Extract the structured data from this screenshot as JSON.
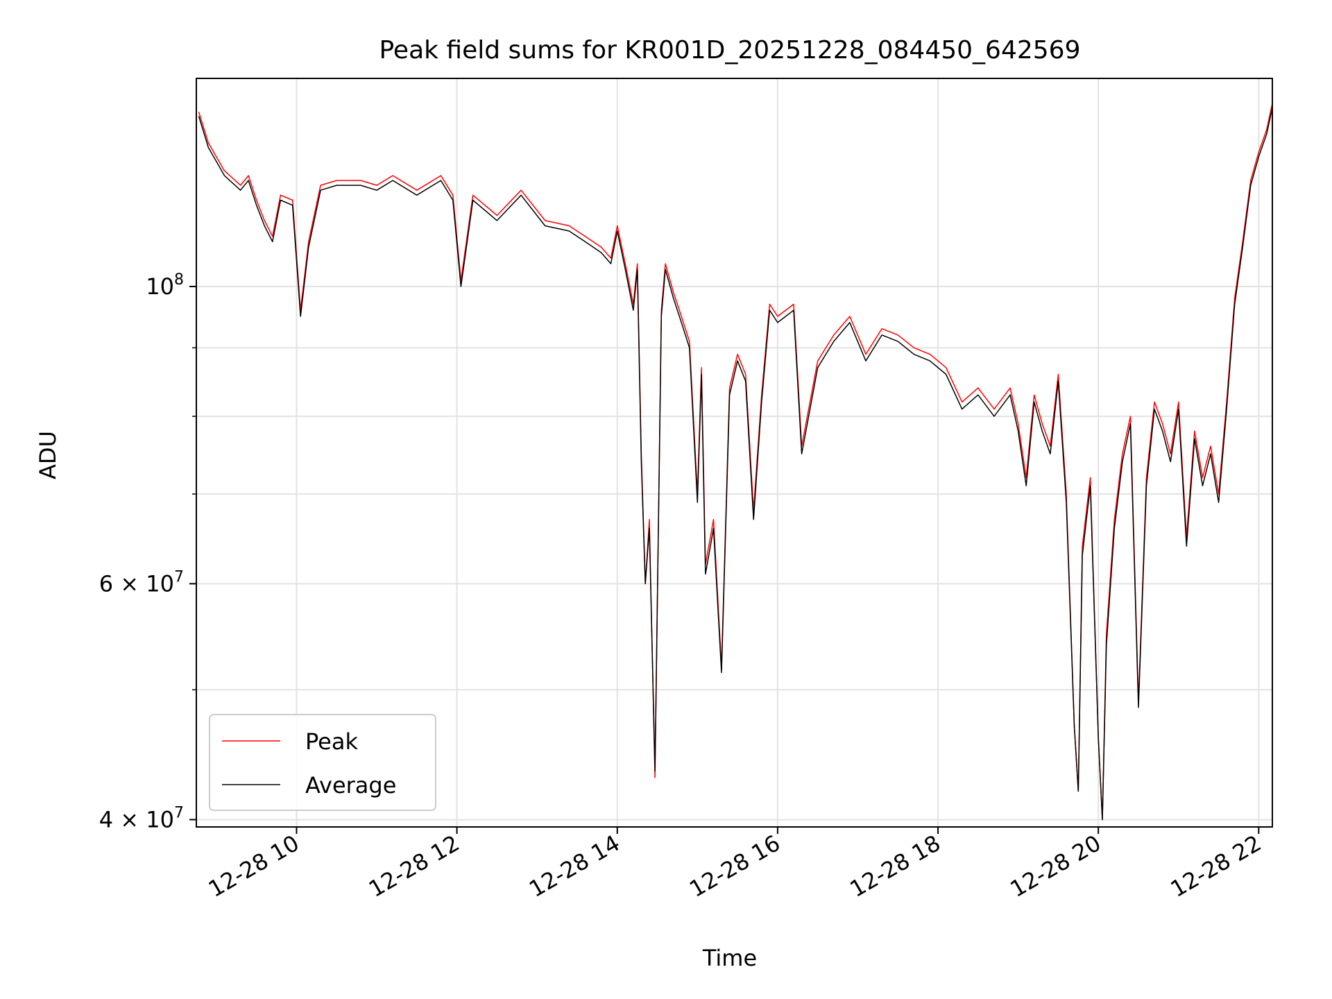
{
  "chart_data": {
    "type": "line",
    "title": "Peak field sums for KR001D_20251228_084450_642569",
    "xlabel": "Time",
    "ylabel": "ADU",
    "yscale": "log",
    "xlim_hours": [
      8.75,
      22.17
    ],
    "ylim": [
      39500000,
      143000000
    ],
    "grid": true,
    "legend_position": "lower-left",
    "x_ticks": [
      {
        "hour": 10,
        "label": "12-28 10"
      },
      {
        "hour": 12,
        "label": "12-28 12"
      },
      {
        "hour": 14,
        "label": "12-28 14"
      },
      {
        "hour": 16,
        "label": "12-28 16"
      },
      {
        "hour": 18,
        "label": "12-28 18"
      },
      {
        "hour": 20,
        "label": "12-28 20"
      },
      {
        "hour": 22,
        "label": "12-28 22"
      }
    ],
    "y_ticks": [
      {
        "value": 100000000,
        "base": "10",
        "exp": "8"
      },
      {
        "value": 60000000,
        "base": "6 × 10",
        "exp": "7"
      },
      {
        "value": 40000000,
        "base": "4 × 10",
        "exp": "7"
      }
    ],
    "y_minor_grid": [
      50000000,
      70000000,
      80000000,
      90000000
    ],
    "series": [
      {
        "name": "Peak",
        "color": "#ff0000",
        "points": [
          [
            8.78,
            135000000
          ],
          [
            8.9,
            128000000
          ],
          [
            9.1,
            122000000
          ],
          [
            9.3,
            119000000
          ],
          [
            9.4,
            121000000
          ],
          [
            9.5,
            116000000
          ],
          [
            9.6,
            112000000
          ],
          [
            9.7,
            109000000
          ],
          [
            9.8,
            117000000
          ],
          [
            9.95,
            116000000
          ],
          [
            10.05,
            96000000
          ],
          [
            10.15,
            108000000
          ],
          [
            10.3,
            119000000
          ],
          [
            10.5,
            120000000
          ],
          [
            10.8,
            120000000
          ],
          [
            11.0,
            119000000
          ],
          [
            11.2,
            121000000
          ],
          [
            11.5,
            118000000
          ],
          [
            11.8,
            121000000
          ],
          [
            11.95,
            117000000
          ],
          [
            12.05,
            101000000
          ],
          [
            12.2,
            117000000
          ],
          [
            12.5,
            113000000
          ],
          [
            12.8,
            118000000
          ],
          [
            13.1,
            112000000
          ],
          [
            13.4,
            111000000
          ],
          [
            13.6,
            109000000
          ],
          [
            13.8,
            107000000
          ],
          [
            13.92,
            105000000
          ],
          [
            14.0,
            111000000
          ],
          [
            14.1,
            104000000
          ],
          [
            14.2,
            97000000
          ],
          [
            14.25,
            104000000
          ],
          [
            14.3,
            75000000
          ],
          [
            14.35,
            60000000
          ],
          [
            14.4,
            67000000
          ],
          [
            14.47,
            43000000
          ],
          [
            14.55,
            96000000
          ],
          [
            14.6,
            104000000
          ],
          [
            14.7,
            99000000
          ],
          [
            14.8,
            95000000
          ],
          [
            14.9,
            91000000
          ],
          [
            15.0,
            70000000
          ],
          [
            15.05,
            87000000
          ],
          [
            15.1,
            62000000
          ],
          [
            15.2,
            67000000
          ],
          [
            15.3,
            52000000
          ],
          [
            15.4,
            84000000
          ],
          [
            15.5,
            89000000
          ],
          [
            15.6,
            86000000
          ],
          [
            15.7,
            68000000
          ],
          [
            15.8,
            83000000
          ],
          [
            15.9,
            97000000
          ],
          [
            16.0,
            95000000
          ],
          [
            16.2,
            97000000
          ],
          [
            16.3,
            76000000
          ],
          [
            16.5,
            88000000
          ],
          [
            16.7,
            92000000
          ],
          [
            16.9,
            95000000
          ],
          [
            17.1,
            89000000
          ],
          [
            17.3,
            93000000
          ],
          [
            17.5,
            92000000
          ],
          [
            17.7,
            90000000
          ],
          [
            17.9,
            89000000
          ],
          [
            18.1,
            87000000
          ],
          [
            18.3,
            82000000
          ],
          [
            18.5,
            84000000
          ],
          [
            18.7,
            81000000
          ],
          [
            18.9,
            84000000
          ],
          [
            19.0,
            79000000
          ],
          [
            19.1,
            72000000
          ],
          [
            19.2,
            83000000
          ],
          [
            19.3,
            79000000
          ],
          [
            19.4,
            76000000
          ],
          [
            19.5,
            86000000
          ],
          [
            19.6,
            70000000
          ],
          [
            19.7,
            47000000
          ],
          [
            19.75,
            42000000
          ],
          [
            19.8,
            64000000
          ],
          [
            19.9,
            72000000
          ],
          [
            20.0,
            46000000
          ],
          [
            20.05,
            40000000
          ],
          [
            20.1,
            55000000
          ],
          [
            20.2,
            67000000
          ],
          [
            20.3,
            75000000
          ],
          [
            20.4,
            80000000
          ],
          [
            20.5,
            49000000
          ],
          [
            20.6,
            72000000
          ],
          [
            20.7,
            82000000
          ],
          [
            20.8,
            79000000
          ],
          [
            20.9,
            75000000
          ],
          [
            21.0,
            82000000
          ],
          [
            21.1,
            65000000
          ],
          [
            21.2,
            78000000
          ],
          [
            21.3,
            72000000
          ],
          [
            21.4,
            76000000
          ],
          [
            21.5,
            70000000
          ],
          [
            21.6,
            82000000
          ],
          [
            21.7,
            98000000
          ],
          [
            21.8,
            108000000
          ],
          [
            21.9,
            120000000
          ],
          [
            22.0,
            126000000
          ],
          [
            22.1,
            131000000
          ],
          [
            22.17,
            137000000
          ]
        ]
      },
      {
        "name": "Average",
        "color": "#000000",
        "points": [
          [
            8.78,
            134000000
          ],
          [
            8.9,
            127000000
          ],
          [
            9.1,
            121000000
          ],
          [
            9.3,
            118000000
          ],
          [
            9.4,
            120000000
          ],
          [
            9.5,
            115000000
          ],
          [
            9.6,
            111000000
          ],
          [
            9.7,
            108000000
          ],
          [
            9.8,
            116000000
          ],
          [
            9.95,
            115000000
          ],
          [
            10.05,
            95000000
          ],
          [
            10.15,
            107000000
          ],
          [
            10.3,
            118000000
          ],
          [
            10.5,
            119000000
          ],
          [
            10.8,
            119000000
          ],
          [
            11.0,
            118000000
          ],
          [
            11.2,
            120000000
          ],
          [
            11.5,
            117000000
          ],
          [
            11.8,
            120000000
          ],
          [
            11.95,
            116000000
          ],
          [
            12.05,
            100000000
          ],
          [
            12.2,
            116000000
          ],
          [
            12.5,
            112000000
          ],
          [
            12.8,
            117000000
          ],
          [
            13.1,
            111000000
          ],
          [
            13.4,
            110000000
          ],
          [
            13.6,
            108000000
          ],
          [
            13.8,
            106000000
          ],
          [
            13.92,
            104000000
          ],
          [
            14.0,
            110000000
          ],
          [
            14.1,
            103000000
          ],
          [
            14.2,
            96000000
          ],
          [
            14.25,
            103000000
          ],
          [
            14.3,
            74000000
          ],
          [
            14.35,
            60000000
          ],
          [
            14.4,
            66000000
          ],
          [
            14.47,
            43500000
          ],
          [
            14.55,
            95000000
          ],
          [
            14.6,
            103000000
          ],
          [
            14.7,
            98000000
          ],
          [
            14.8,
            94000000
          ],
          [
            14.9,
            90000000
          ],
          [
            15.0,
            69000000
          ],
          [
            15.05,
            86000000
          ],
          [
            15.1,
            61000000
          ],
          [
            15.2,
            66000000
          ],
          [
            15.3,
            51500000
          ],
          [
            15.4,
            83000000
          ],
          [
            15.5,
            88000000
          ],
          [
            15.6,
            85000000
          ],
          [
            15.7,
            67000000
          ],
          [
            15.8,
            82000000
          ],
          [
            15.9,
            96000000
          ],
          [
            16.0,
            94000000
          ],
          [
            16.2,
            96000000
          ],
          [
            16.3,
            75000000
          ],
          [
            16.5,
            87000000
          ],
          [
            16.7,
            91000000
          ],
          [
            16.9,
            94000000
          ],
          [
            17.1,
            88000000
          ],
          [
            17.3,
            92000000
          ],
          [
            17.5,
            91000000
          ],
          [
            17.7,
            89000000
          ],
          [
            17.9,
            88000000
          ],
          [
            18.1,
            86000000
          ],
          [
            18.3,
            81000000
          ],
          [
            18.5,
            83000000
          ],
          [
            18.7,
            80000000
          ],
          [
            18.9,
            83000000
          ],
          [
            19.0,
            78000000
          ],
          [
            19.1,
            71000000
          ],
          [
            19.2,
            82000000
          ],
          [
            19.3,
            78000000
          ],
          [
            19.4,
            75000000
          ],
          [
            19.5,
            85000000
          ],
          [
            19.6,
            69000000
          ],
          [
            19.7,
            47000000
          ],
          [
            19.75,
            42000000
          ],
          [
            19.8,
            63000000
          ],
          [
            19.9,
            71000000
          ],
          [
            20.0,
            46000000
          ],
          [
            20.05,
            40000000
          ],
          [
            20.1,
            54000000
          ],
          [
            20.2,
            66000000
          ],
          [
            20.3,
            74000000
          ],
          [
            20.4,
            79000000
          ],
          [
            20.5,
            48500000
          ],
          [
            20.6,
            71000000
          ],
          [
            20.7,
            81000000
          ],
          [
            20.8,
            78000000
          ],
          [
            20.9,
            74000000
          ],
          [
            21.0,
            81000000
          ],
          [
            21.1,
            64000000
          ],
          [
            21.2,
            77000000
          ],
          [
            21.3,
            71000000
          ],
          [
            21.4,
            75000000
          ],
          [
            21.5,
            69000000
          ],
          [
            21.6,
            81000000
          ],
          [
            21.7,
            97000000
          ],
          [
            21.8,
            107000000
          ],
          [
            21.9,
            119000000
          ],
          [
            22.0,
            125000000
          ],
          [
            22.1,
            130000000
          ],
          [
            22.17,
            136000000
          ]
        ]
      }
    ]
  }
}
